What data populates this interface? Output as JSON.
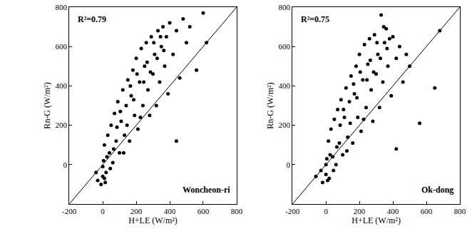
{
  "chart_data": [
    {
      "type": "scatter",
      "color": "#000000",
      "marker": "circle",
      "xlabel": "H+LE (W/m²)",
      "ylabel": "Rn-G (W/m²)",
      "xlim": [
        -200,
        800
      ],
      "ylim": [
        -200,
        800
      ],
      "xticks": [
        -200,
        0,
        200,
        400,
        600,
        800
      ],
      "yticks": [
        0,
        200,
        400,
        600,
        800
      ],
      "annotations": [
        {
          "text": "R²=0.79"
        },
        {
          "text": "Woncheon-ri"
        }
      ],
      "x": [
        -30,
        -10,
        0,
        5,
        10,
        20,
        30,
        40,
        50,
        60,
        70,
        80,
        90,
        100,
        110,
        120,
        130,
        140,
        150,
        160,
        170,
        180,
        190,
        200,
        210,
        220,
        230,
        240,
        250,
        260,
        270,
        280,
        290,
        300,
        310,
        320,
        330,
        340,
        350,
        360,
        370,
        380,
        390,
        400,
        420,
        440,
        460,
        480,
        500,
        520,
        560,
        600,
        620,
        -40,
        15,
        25,
        45,
        65,
        85,
        105,
        125,
        145,
        165,
        185,
        205,
        225,
        245,
        265,
        285,
        305,
        325,
        345,
        365,
        440,
        0,
        10
      ],
      "y": [
        -80,
        -100,
        -60,
        20,
        100,
        -40,
        150,
        60,
        200,
        10,
        260,
        120,
        320,
        60,
        220,
        380,
        150,
        300,
        430,
        120,
        350,
        480,
        250,
        540,
        180,
        420,
        590,
        300,
        500,
        620,
        380,
        250,
        650,
        460,
        560,
        300,
        680,
        420,
        600,
        700,
        500,
        650,
        360,
        720,
        560,
        680,
        440,
        740,
        620,
        700,
        480,
        770,
        620,
        -40,
        -90,
        40,
        -20,
        80,
        190,
        270,
        60,
        200,
        400,
        330,
        460,
        240,
        420,
        520,
        470,
        620,
        540,
        650,
        580,
        120,
        -10,
        -70
      ]
    },
    {
      "type": "scatter",
      "color": "#000000",
      "marker": "circle",
      "xlabel": "H+LE (W/m²)",
      "ylabel": "Rn-G (W/m²)",
      "xlim": [
        -200,
        800
      ],
      "ylim": [
        -200,
        800
      ],
      "xticks": [
        -200,
        0,
        200,
        400,
        600,
        800
      ],
      "yticks": [
        0,
        200,
        400,
        600,
        800
      ],
      "annotations": [
        {
          "text": "R²=0.75"
        },
        {
          "text": "Ok-dong"
        }
      ],
      "x": [
        -60,
        -20,
        0,
        5,
        15,
        20,
        30,
        40,
        50,
        60,
        70,
        80,
        90,
        100,
        110,
        120,
        130,
        140,
        150,
        160,
        170,
        180,
        190,
        200,
        210,
        220,
        230,
        240,
        250,
        260,
        270,
        280,
        290,
        300,
        310,
        320,
        330,
        340,
        350,
        360,
        370,
        380,
        390,
        400,
        420,
        440,
        460,
        480,
        500,
        560,
        650,
        680,
        -30,
        10,
        25,
        45,
        65,
        85,
        105,
        125,
        145,
        165,
        185,
        205,
        225,
        245,
        265,
        285,
        305,
        325,
        345,
        365,
        420,
        0
      ],
      "y": [
        -60,
        -90,
        -50,
        30,
        120,
        -70,
        180,
        40,
        230,
        0,
        280,
        110,
        330,
        50,
        240,
        390,
        140,
        320,
        450,
        110,
        360,
        500,
        240,
        560,
        170,
        430,
        610,
        290,
        510,
        640,
        380,
        220,
        660,
        460,
        560,
        290,
        760,
        420,
        620,
        690,
        500,
        640,
        350,
        650,
        540,
        600,
        420,
        560,
        500,
        210,
        390,
        680,
        -30,
        -80,
        50,
        -30,
        90,
        200,
        280,
        70,
        210,
        410,
        340,
        470,
        230,
        430,
        530,
        470,
        620,
        540,
        700,
        590,
        80,
        0
      ]
    }
  ]
}
